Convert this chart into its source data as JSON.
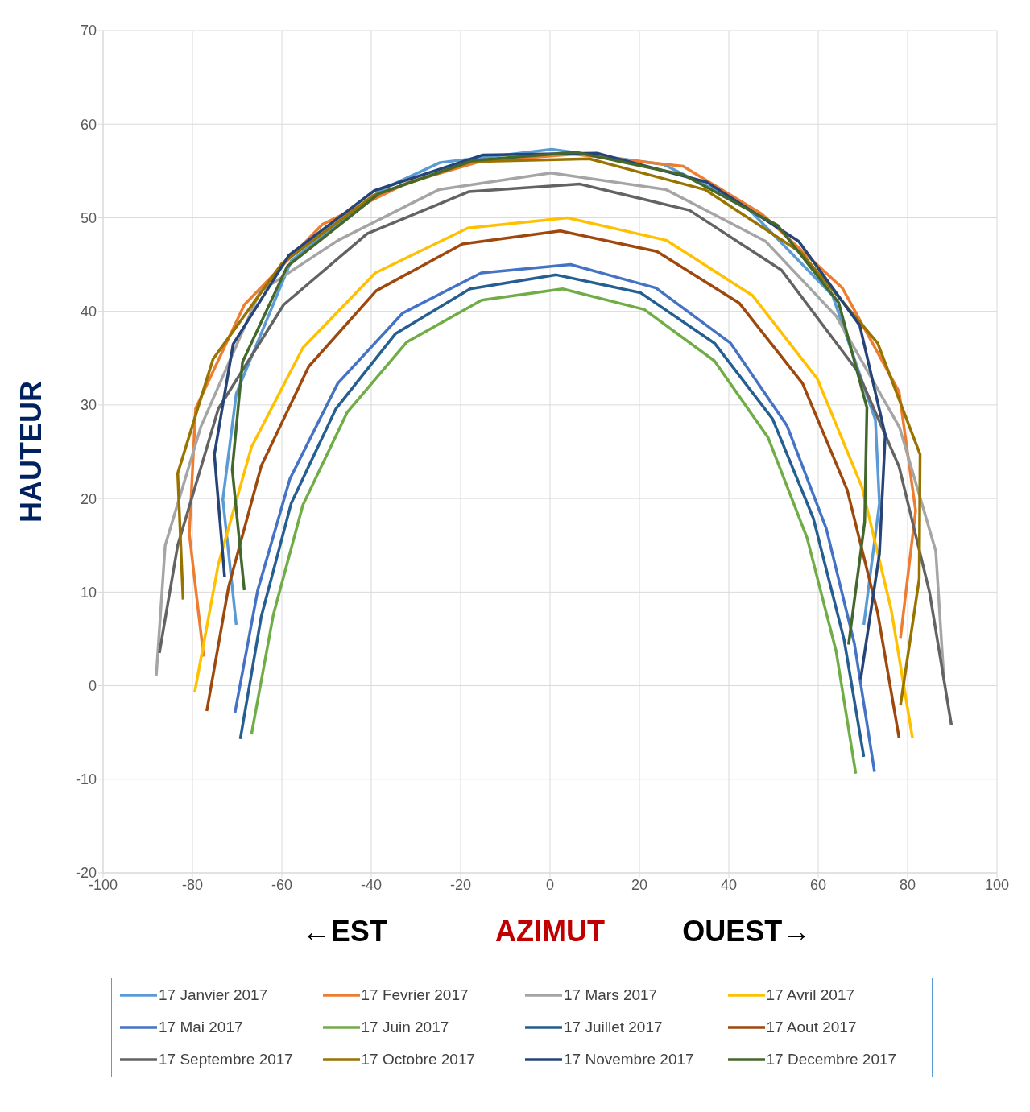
{
  "chart_data": {
    "type": "line",
    "xlabel": "AZIMUT",
    "ylabel": "HAUTEUR",
    "annotations": [
      "←EST",
      "OUEST→"
    ],
    "xlim": [
      -100,
      100
    ],
    "xticks": [
      -100,
      -80,
      -60,
      -40,
      -20,
      0,
      20,
      40,
      60,
      80,
      100
    ],
    "ylim": [
      -20,
      70
    ],
    "yticks": [
      -20,
      -10,
      0,
      10,
      20,
      30,
      40,
      50,
      60,
      70
    ],
    "grid": true,
    "legend": "bottom",
    "marker": "none",
    "line_style": "solid",
    "series": [
      {
        "name": "17 Janvier 2017",
        "color": "#5b9bd5",
        "x": [
          -70.2,
          -73.2,
          -70.2,
          -57.9,
          -37.7,
          -24.6,
          0.4,
          25.4,
          43.5,
          63.2,
          72.8,
          73.7,
          70.2
        ],
        "values": [
          6.5,
          19.9,
          31.2,
          45.4,
          53.0,
          55.9,
          57.3,
          55.7,
          51.4,
          41.7,
          28.4,
          19.5,
          6.5
        ]
      },
      {
        "name": "17 Fevrier 2017",
        "color": "#ed7d31",
        "x": [
          -77.5,
          -80.7,
          -79.3,
          -68.4,
          -50.9,
          -31.6,
          -15.8,
          5.3,
          29.8,
          47.4,
          65.4,
          78.1,
          81.8,
          78.4
        ],
        "values": [
          3.1,
          16.2,
          29.6,
          40.7,
          49.3,
          53.8,
          56.0,
          56.8,
          55.5,
          50.4,
          42.5,
          31.4,
          18.7,
          5.1
        ]
      },
      {
        "name": "17 Mars 2017",
        "color": "#a5a5a5",
        "x": [
          -88.1,
          -86.1,
          -78.1,
          -64.9,
          -47.4,
          -24.9,
          0.2,
          26.0,
          48.2,
          64.0,
          78.2,
          86.3,
          88.1
        ],
        "values": [
          1.1,
          15.0,
          27.7,
          42.1,
          47.6,
          53.0,
          54.8,
          53.0,
          47.5,
          39.5,
          27.6,
          14.4,
          0.9
        ]
      },
      {
        "name": "17 Avril 2017",
        "color": "#ffc000",
        "x": [
          -79.5,
          -74.2,
          -66.8,
          -55.3,
          -39.1,
          -18.4,
          3.9,
          26.0,
          45.3,
          59.8,
          69.8,
          76.3,
          81.1
        ],
        "values": [
          -0.7,
          13.0,
          25.5,
          36.1,
          44.1,
          48.9,
          50.0,
          47.6,
          41.7,
          32.8,
          21.2,
          8.2,
          -5.6
        ]
      },
      {
        "name": "17 Mai 2017",
        "color": "#4472c4",
        "x": [
          -70.5,
          -65.4,
          -58.2,
          -47.5,
          -33.0,
          -15.4,
          4.6,
          23.7,
          40.4,
          53.0,
          61.8,
          68.1,
          72.6
        ],
        "values": [
          -2.9,
          10.2,
          22.1,
          32.3,
          39.8,
          44.1,
          45.0,
          42.5,
          36.6,
          27.8,
          16.8,
          4.5,
          -9.2
        ]
      },
      {
        "name": "17 Juin 2017",
        "color": "#70ad47",
        "x": [
          -66.8,
          -61.9,
          -55.3,
          -45.4,
          -32.1,
          -15.3,
          2.8,
          21.1,
          36.8,
          48.8,
          57.5,
          64.0,
          68.4
        ],
        "values": [
          -5.2,
          7.6,
          19.3,
          29.2,
          36.7,
          41.2,
          42.4,
          40.2,
          34.7,
          26.5,
          15.8,
          3.7,
          -9.4
        ]
      },
      {
        "name": "17 Juillet 2017",
        "color": "#255e91",
        "x": [
          -69.3,
          -64.6,
          -57.9,
          -47.9,
          -34.6,
          -17.9,
          1.4,
          20.2,
          36.8,
          49.8,
          58.9,
          65.8,
          70.2
        ],
        "values": [
          -5.7,
          7.4,
          19.5,
          29.6,
          37.6,
          42.4,
          43.9,
          42.0,
          36.6,
          28.5,
          17.9,
          4.9,
          -7.6
        ]
      },
      {
        "name": "17 Aout 2017",
        "color": "#9e480e",
        "x": [
          -76.8,
          -71.9,
          -64.6,
          -54.0,
          -38.9,
          -19.6,
          2.3,
          23.9,
          42.3,
          56.5,
          66.5,
          73.3,
          78.1
        ],
        "values": [
          -2.7,
          10.6,
          23.5,
          34.1,
          42.2,
          47.2,
          48.6,
          46.4,
          40.9,
          32.3,
          20.9,
          7.8,
          -5.6
        ]
      },
      {
        "name": "17 Septembre 2017",
        "color": "#636363",
        "x": [
          -87.4,
          -83.3,
          -74.2,
          -59.6,
          -40.9,
          -18.1,
          6.7,
          31.2,
          51.8,
          68.8,
          78.1,
          84.9,
          89.8
        ],
        "values": [
          3.5,
          15.0,
          29.6,
          40.7,
          48.3,
          52.8,
          53.6,
          50.8,
          44.4,
          33.6,
          23.4,
          10.0,
          -4.2
        ]
      },
      {
        "name": "17 Octobre 2017",
        "color": "#997300",
        "x": [
          -82.1,
          -83.3,
          -75.4,
          -60.0,
          -39.5,
          -17.5,
          8.8,
          34.7,
          56.1,
          73.3,
          82.8,
          82.6,
          78.4
        ],
        "values": [
          9.2,
          22.7,
          34.9,
          45.1,
          52.4,
          56.0,
          56.3,
          53.0,
          46.3,
          36.6,
          24.7,
          11.4,
          -2.1
        ]
      },
      {
        "name": "17 Novembre 2017",
        "color": "#264478",
        "x": [
          -72.8,
          -75.1,
          -70.9,
          -58.4,
          -39.3,
          -15.1,
          10.5,
          35.1,
          55.6,
          69.3,
          75.0,
          73.7,
          69.5
        ],
        "values": [
          11.6,
          24.7,
          36.5,
          46.0,
          52.9,
          56.7,
          56.9,
          53.8,
          47.5,
          38.5,
          26.8,
          14.1,
          0.7
        ]
      },
      {
        "name": "17 Decembre 2017",
        "color": "#43682b",
        "x": [
          -68.4,
          -71.1,
          -68.8,
          -58.8,
          -38.2,
          -17.5,
          5.8,
          29.8,
          50.9,
          64.6,
          70.9,
          70.4,
          66.8
        ],
        "values": [
          10.2,
          23.1,
          34.6,
          44.8,
          52.6,
          56.1,
          57.0,
          54.6,
          49.2,
          40.9,
          29.7,
          17.5,
          4.4
        ]
      }
    ]
  }
}
